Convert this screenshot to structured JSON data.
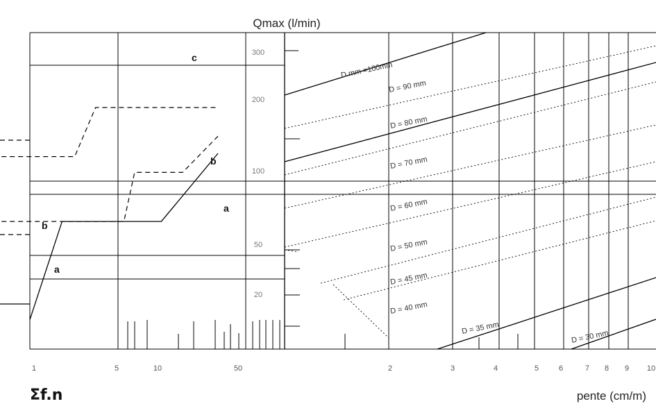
{
  "chart_data": {
    "type": "line",
    "title": "Qmax (l/min)",
    "left_panel": {
      "xlabel": "Σf.n",
      "x_ticks": [
        "1",
        "5",
        "10",
        "50"
      ],
      "y_ticks": [
        "300",
        "200",
        "100",
        "50",
        "20"
      ],
      "curves": [
        {
          "name": "a",
          "style": "solid",
          "points": [
            [
              1,
              15
            ],
            [
              2.2,
              60
            ],
            [
              25,
              60
            ],
            [
              100,
              157
            ]
          ]
        },
        {
          "name": "b",
          "style": "dashed",
          "points": [
            [
              0.5,
              60
            ],
            [
              2.2,
              60
            ],
            [
              10,
              60
            ],
            [
              13,
              120
            ],
            [
              42,
              120
            ],
            [
              100,
              200
            ]
          ]
        },
        {
          "name": "c",
          "style": "dashed",
          "points": [
            [
              0.5,
              150
            ],
            [
              3,
              150
            ],
            [
              5,
              300
            ],
            [
              100,
              300
            ]
          ]
        }
      ]
    },
    "right_panel": {
      "xlabel": "pente (cm/m)",
      "x_ticks": [
        "2",
        "3",
        "4",
        "5",
        "6",
        "7",
        "8",
        "9",
        "10"
      ],
      "diameter_lines": [
        {
          "label": "D = 30 mm",
          "style": "solid"
        },
        {
          "label": "D = 35 mm",
          "style": "solid"
        },
        {
          "label": "D = 40 mm",
          "style": "dotted"
        },
        {
          "label": "D = 45 mm",
          "style": "dotted"
        },
        {
          "label": "D = 50 mm",
          "style": "dotted"
        },
        {
          "label": "D = 60 mm",
          "style": "dotted"
        },
        {
          "label": "D = 70 mm",
          "style": "dotted"
        },
        {
          "label": "D = 80 mm",
          "style": "solid"
        },
        {
          "label": "D = 90 mm",
          "style": "dotted"
        },
        {
          "label": "D mm =100mm",
          "style": "solid"
        }
      ]
    }
  }
}
